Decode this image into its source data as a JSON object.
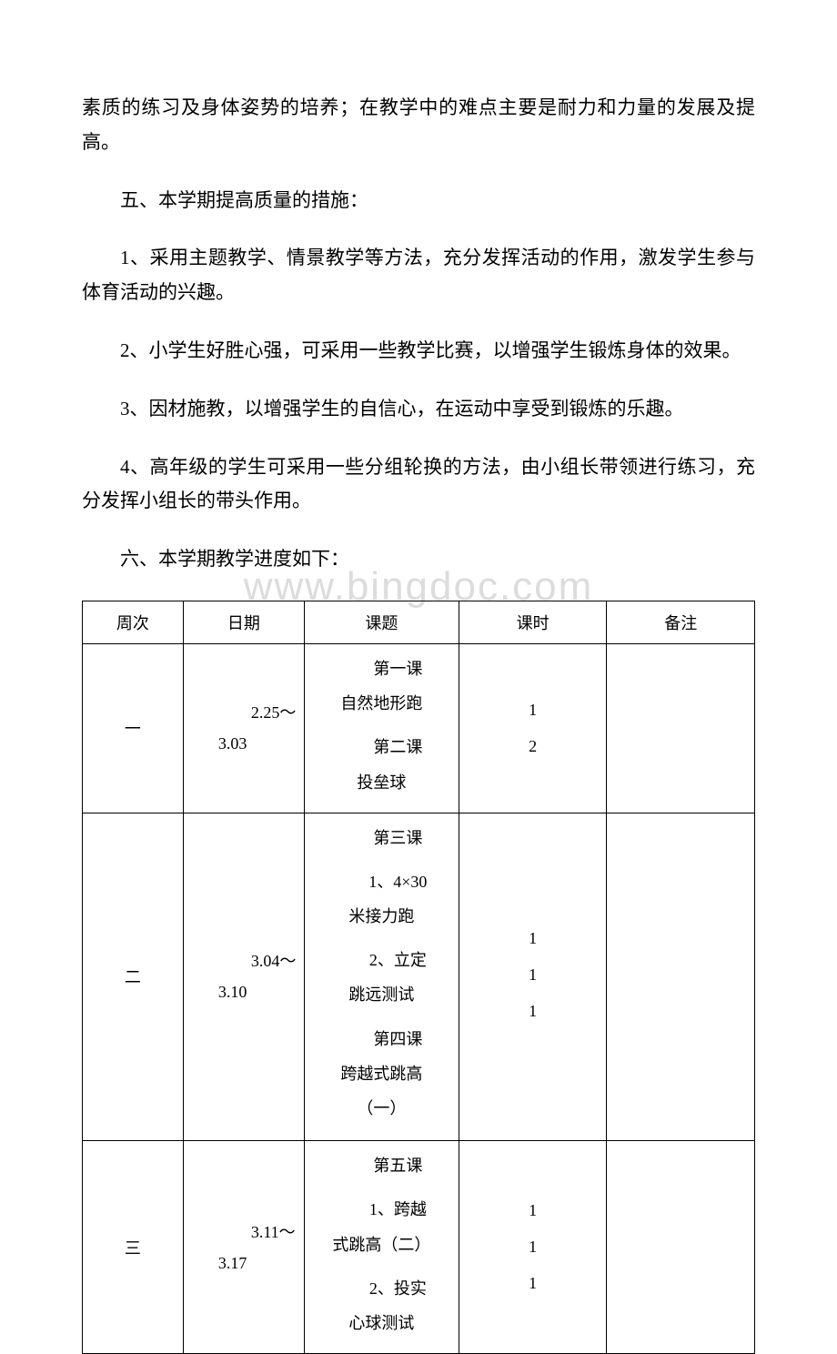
{
  "watermark": "www.bingdoc.com",
  "paragraphs": {
    "p1": "素质的练习及身体姿势的培养；在教学中的难点主要是耐力和力量的发展及提高。",
    "p2": "五、本学期提高质量的措施：",
    "p3": "1、采用主题教学、情景教学等方法，充分发挥活动的作用，激发学生参与体育活动的兴趣。",
    "p4": "2、小学生好胜心强，可采用一些教学比赛，以增强学生锻炼身体的效果。",
    "p5": "3、因材施教，以增强学生的自信心，在运动中享受到锻炼的乐趣。",
    "p6": "4、高年级的学生可采用一些分组轮换的方法，由小组长带领进行练习，充分发挥小组长的带头作用。",
    "p7": "六、本学期教学进度如下："
  },
  "table": {
    "headers": {
      "week": "周次",
      "date": "日期",
      "topic": "课题",
      "hours": "课时",
      "note": "备注"
    },
    "rows": {
      "r1": {
        "week": "一",
        "date_line1": "　　2.25～",
        "date_line2": "3.03",
        "topic_l1": "　　第一课",
        "topic_l2": "自然地形跑",
        "topic_l3": "　　第二课",
        "topic_l4": "投垒球",
        "hours_l1": "1",
        "hours_l2": "2",
        "note": ""
      },
      "r2": {
        "week": "二",
        "date_line1": "　　3.04～",
        "date_line2": "3.10",
        "topic_l1": "　　第三课",
        "topic_l2": "　　1、4×30",
        "topic_l3": "米接力跑",
        "topic_l4": "　　2、立定",
        "topic_l5": "跳远测试",
        "topic_l6": "　　第四课",
        "topic_l7": "跨越式跳高",
        "topic_l8": "（一）",
        "hours_l1": "1",
        "hours_l2": "1",
        "hours_l3": "1",
        "note": ""
      },
      "r3": {
        "week": "三",
        "date_line1": "　　3.11～",
        "date_line2": "3.17",
        "topic_l1": "　　第五课",
        "topic_l2": "　　1、跨越",
        "topic_l3": "式跳高（二）",
        "topic_l4": "　　2、投实",
        "topic_l5": "心球测试",
        "hours_l1": "1",
        "hours_l2": "1",
        "hours_l3": "1",
        "note": ""
      }
    }
  },
  "colors": {
    "text": "#000000",
    "background": "#ffffff",
    "watermark": "#dcdcdc",
    "border": "#000000"
  }
}
